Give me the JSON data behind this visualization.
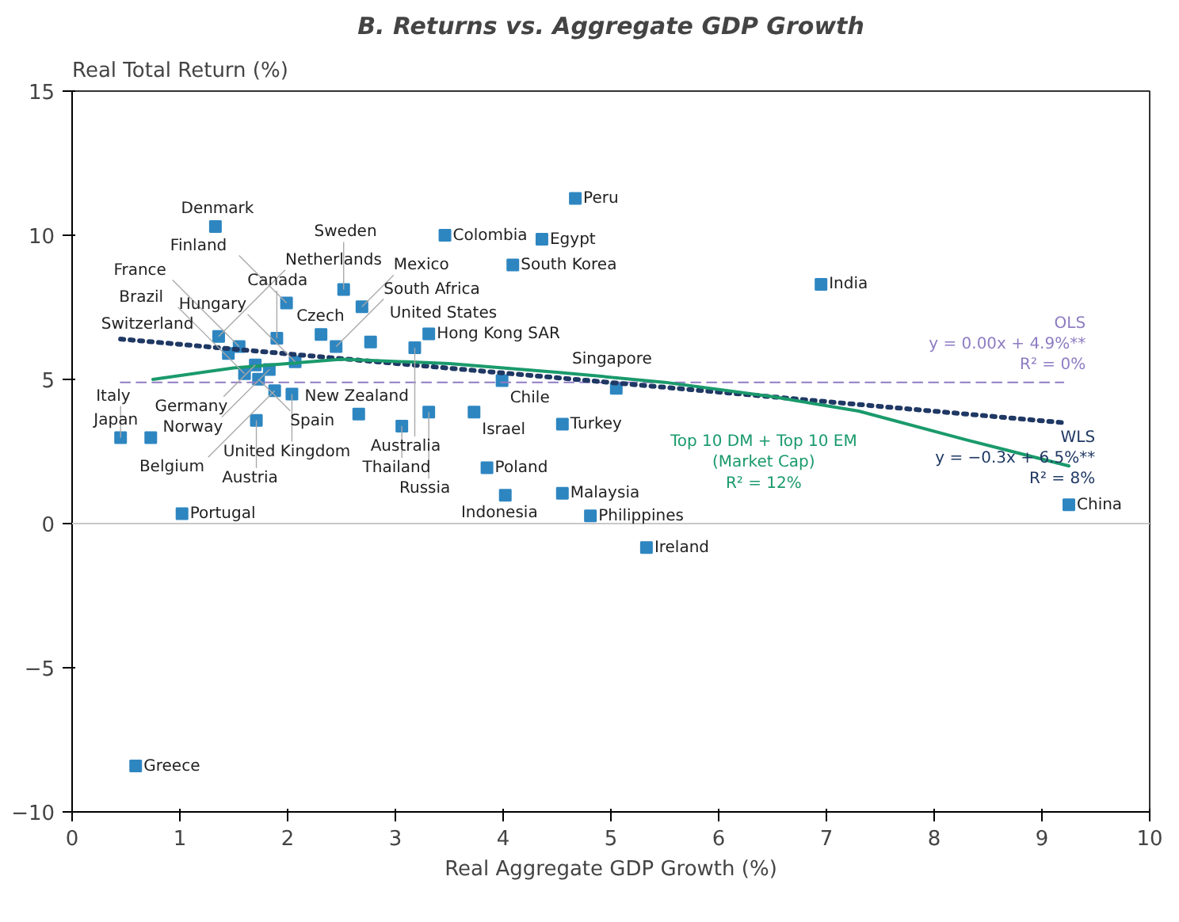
{
  "chart_data": {
    "type": "scatter",
    "title": "B. Returns vs. Aggregate GDP Growth",
    "xlabel": "Real Aggregate GDP Growth (%)",
    "ylabel": "Real Total Return (%)",
    "xlim": [
      0,
      10
    ],
    "ylim": [
      -10,
      15
    ],
    "xticks": [
      0,
      1,
      2,
      3,
      4,
      5,
      6,
      7,
      8,
      9,
      10
    ],
    "yticks": [
      -10,
      -5,
      0,
      5,
      10,
      15
    ],
    "grid": false,
    "legend": false,
    "ref_lines": [
      {
        "axis": "y",
        "value": 0,
        "color": "#c8c8c8"
      }
    ],
    "series": [
      {
        "type": "scatter",
        "marker": "square",
        "color": "#2e86c1",
        "x": [
          1.33,
          3.46,
          4.67,
          4.36,
          4.09,
          6.95,
          1.99,
          2.52,
          2.69,
          1.36,
          1.9,
          1.55,
          2.31,
          2.45,
          3.31,
          1.45,
          2.77,
          1.6,
          1.7,
          1.83,
          3.18,
          2.07,
          1.73,
          1.88,
          2.04,
          3.99,
          5.05,
          3.31,
          0.45,
          0.73,
          1.71,
          2.66,
          3.06,
          3.73,
          4.55,
          3.85,
          4.55,
          4.02,
          4.81,
          1.02,
          5.33,
          9.25,
          0.59
        ],
        "values": [
          10.3,
          10.0,
          11.28,
          9.86,
          8.97,
          8.3,
          7.65,
          8.12,
          7.52,
          6.49,
          6.43,
          6.14,
          6.56,
          6.14,
          6.58,
          5.9,
          6.3,
          5.2,
          5.5,
          5.34,
          6.1,
          5.61,
          5.01,
          4.61,
          4.49,
          4.96,
          4.69,
          3.87,
          2.98,
          2.98,
          3.58,
          3.8,
          3.38,
          3.87,
          3.45,
          1.94,
          1.05,
          0.98,
          0.27,
          0.34,
          -0.83,
          0.65,
          -8.41
        ]
      },
      {
        "type": "line",
        "name": "OLS",
        "color": "#8e7cc3",
        "line_style": "dashed",
        "x": [
          0.45,
          9.2
        ],
        "values": [
          4.9,
          4.9
        ]
      },
      {
        "type": "line",
        "name": "WLS",
        "color": "#1f3864",
        "line_style": "dotted",
        "x": [
          0.45,
          9.2
        ],
        "values": [
          6.4,
          3.5
        ]
      },
      {
        "type": "line",
        "color": "#1a9a6c",
        "line_style": "solid",
        "x": [
          0.75,
          1.5,
          2.5,
          3.5,
          4.5,
          5.5,
          6.5,
          7.3,
          8.3,
          9.25
        ],
        "values": [
          5.0,
          5.4,
          5.7,
          5.55,
          5.25,
          4.9,
          4.4,
          3.9,
          2.9,
          2.0
        ]
      }
    ],
    "annotations": [
      {
        "text": "Denmark",
        "x": 1.33,
        "y": 10.3
      },
      {
        "text": "Colombia",
        "x": 3.46,
        "y": 10.0
      },
      {
        "text": "Peru",
        "x": 4.67,
        "y": 11.28
      },
      {
        "text": "Egypt",
        "x": 4.36,
        "y": 9.86
      },
      {
        "text": "South Korea",
        "x": 4.09,
        "y": 8.97
      },
      {
        "text": "India",
        "x": 6.95,
        "y": 8.3
      },
      {
        "text": "Finland",
        "x": 1.99,
        "y": 7.65
      },
      {
        "text": "Sweden",
        "x": 2.52,
        "y": 8.12
      },
      {
        "text": "Mexico",
        "x": 2.69,
        "y": 7.52
      },
      {
        "text": "Netherlands",
        "x": 1.36,
        "y": 6.49
      },
      {
        "text": "Canada",
        "x": 1.9,
        "y": 6.43
      },
      {
        "text": "France",
        "x": 1.55,
        "y": 6.14
      },
      {
        "text": "Czech",
        "x": 2.31,
        "y": 6.56
      },
      {
        "text": "South Africa",
        "x": 2.45,
        "y": 6.14
      },
      {
        "text": "Hong Kong SAR",
        "x": 3.31,
        "y": 6.58
      },
      {
        "text": "Switzerland",
        "x": 1.45,
        "y": 5.9
      },
      {
        "text": "United States",
        "x": 2.77,
        "y": 6.3
      },
      {
        "text": "Brazil",
        "x": 1.6,
        "y": 5.2
      },
      {
        "text": "Germany",
        "x": 1.7,
        "y": 5.5
      },
      {
        "text": "Norway",
        "x": 1.83,
        "y": 5.34
      },
      {
        "text": "Australia",
        "x": 3.18,
        "y": 6.1
      },
      {
        "text": "Hungary",
        "x": 2.07,
        "y": 5.61
      },
      {
        "text": "Spain",
        "x": 1.73,
        "y": 5.01
      },
      {
        "text": "Belgium",
        "x": 1.88,
        "y": 4.61
      },
      {
        "text": "United Kingdom",
        "x": 2.04,
        "y": 4.49
      },
      {
        "text": "Chile",
        "x": 3.99,
        "y": 4.96
      },
      {
        "text": "Singapore",
        "x": 5.05,
        "y": 4.69
      },
      {
        "text": "Russia",
        "x": 3.31,
        "y": 3.87
      },
      {
        "text": "Italy",
        "x": 0.45,
        "y": 2.98
      },
      {
        "text": "Japan",
        "x": 0.73,
        "y": 2.98
      },
      {
        "text": "Austria",
        "x": 1.71,
        "y": 3.58
      },
      {
        "text": "New Zealand",
        "x": 2.66,
        "y": 3.8
      },
      {
        "text": "Thailand",
        "x": 3.06,
        "y": 3.38
      },
      {
        "text": "Israel",
        "x": 3.73,
        "y": 3.87
      },
      {
        "text": "Turkey",
        "x": 4.55,
        "y": 3.45
      },
      {
        "text": "Poland",
        "x": 3.85,
        "y": 1.94
      },
      {
        "text": "Malaysia",
        "x": 4.55,
        "y": 1.05
      },
      {
        "text": "Indonesia",
        "x": 4.02,
        "y": 0.98
      },
      {
        "text": "Philippines",
        "x": 4.81,
        "y": 0.27
      },
      {
        "text": "Portugal",
        "x": 1.02,
        "y": 0.34
      },
      {
        "text": "Ireland",
        "x": 5.33,
        "y": -0.83
      },
      {
        "text": "China",
        "x": 9.25,
        "y": 0.65
      },
      {
        "text": "Greece",
        "x": 0.59,
        "y": -8.41
      },
      {
        "text": "y = 0.00x + 4.9%**\nR² = 0%",
        "x": 9.2,
        "y": 4.9
      },
      {
        "text": "y = −0.3x + 6.5%**\nR² = 8%",
        "x": 9.2,
        "y": 3.5
      },
      {
        "text": "Top 10 DM + Top 10 EM\n(Market Cap)\nR² = 12%",
        "x": 7.3,
        "y": 3.9
      }
    ]
  }
}
